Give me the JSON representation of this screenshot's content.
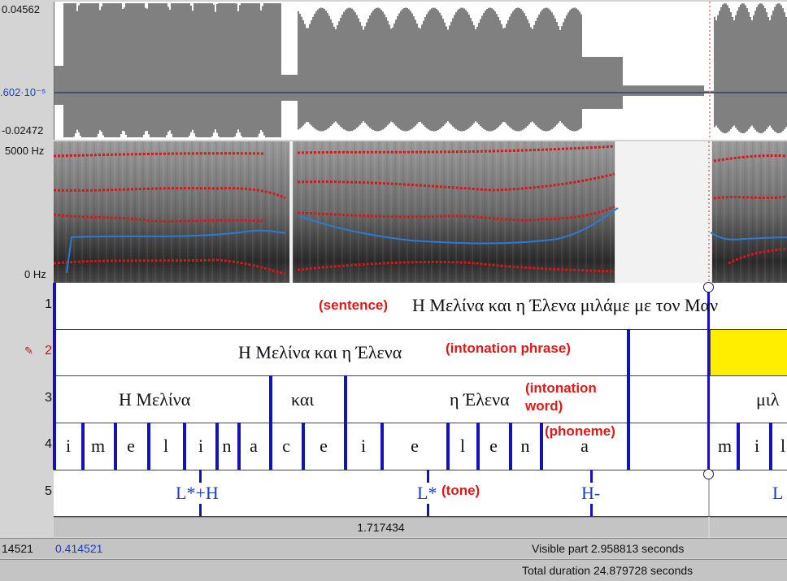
{
  "waveform": {
    "max_label": "0.04562",
    "zero_label": ".602·10⁻⁵",
    "min_label": "-0.02472"
  },
  "spectrogram": {
    "top_label": "5000 Hz",
    "bottom_label": "0 Hz"
  },
  "tier_numbers": [
    "1",
    "2",
    "3",
    "4",
    "5"
  ],
  "tier2_marker": "✎",
  "tier1": {
    "note": "(sentence)",
    "text": "Η Μελίνα και η Έλενα μιλάμε με τον Μαν"
  },
  "tier2": {
    "text": "Η Μελίνα και η Έλενα",
    "note": "(intonation phrase)"
  },
  "tier3": {
    "w1": "Η Μελίνα",
    "w2": "και",
    "w3": "η Έλενα",
    "note": "(intonation word)",
    "w4": "μιλ"
  },
  "tier4": {
    "phonemes": [
      "i",
      "m",
      "e",
      "l",
      "i",
      "n",
      "a",
      "c",
      "e",
      "i",
      "e",
      "l",
      "e",
      "n",
      "a",
      "m",
      "i",
      "l"
    ],
    "note": "(phoneme)"
  },
  "tier5": {
    "t1": "L*+H",
    "t2": "L*",
    "t2_note": "(tone)",
    "t3": "H-",
    "t4": "L"
  },
  "selection_duration": "1.717434",
  "bottom": {
    "left_time": "14521",
    "start_time": "0.414521",
    "visible": "Visible part 2.958813 seconds",
    "total": "Total duration 24.879728 seconds"
  },
  "colors": {
    "formant": "#d81818",
    "pitch": "#2a7bd8",
    "boundary": "#1212b8",
    "selection": "#ffee00"
  }
}
